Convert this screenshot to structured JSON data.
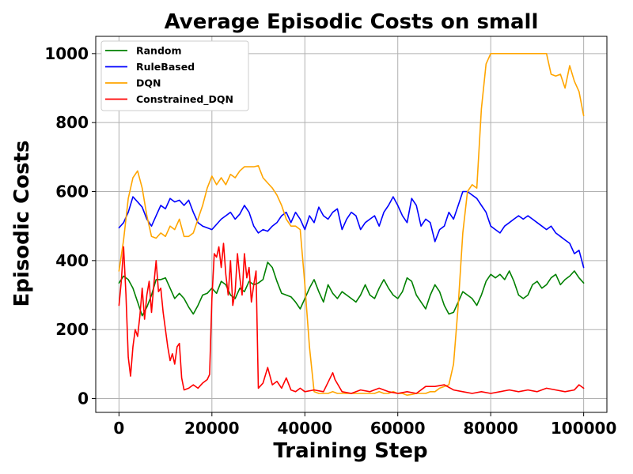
{
  "chart_data": {
    "type": "line",
    "title": "Average Episodic Costs on small",
    "xlabel": "Training Step",
    "ylabel": "Episodic Costs",
    "xlim": [
      -5000,
      105000
    ],
    "ylim": [
      -40,
      1050
    ],
    "xticks": [
      0,
      20000,
      40000,
      60000,
      80000,
      100000
    ],
    "xtick_labels": [
      "0",
      "20000",
      "40000",
      "60000",
      "80000",
      "100000"
    ],
    "yticks": [
      0,
      200,
      400,
      600,
      800,
      1000
    ],
    "ytick_labels": [
      "0",
      "200",
      "400",
      "600",
      "800",
      "1000"
    ],
    "grid": true,
    "legend_position": "upper-left",
    "series": [
      {
        "name": "Random",
        "color": "#008000",
        "x": [
          0,
          1000,
          2000,
          3000,
          4000,
          5000,
          6000,
          7000,
          8000,
          9000,
          10000,
          11000,
          12000,
          13000,
          14000,
          15000,
          16000,
          17000,
          18000,
          19000,
          20000,
          21000,
          22000,
          23000,
          24000,
          25000,
          26000,
          27000,
          28000,
          29000,
          30000,
          31000,
          32000,
          33000,
          34000,
          35000,
          36000,
          37000,
          38000,
          39000,
          40000,
          41000,
          42000,
          43000,
          44000,
          45000,
          46000,
          47000,
          48000,
          49000,
          50000,
          51000,
          52000,
          53000,
          54000,
          55000,
          56000,
          57000,
          58000,
          59000,
          60000,
          61000,
          62000,
          63000,
          64000,
          65000,
          66000,
          67000,
          68000,
          69000,
          70000,
          71000,
          72000,
          73000,
          74000,
          75000,
          76000,
          77000,
          78000,
          79000,
          80000,
          81000,
          82000,
          83000,
          84000,
          85000,
          86000,
          87000,
          88000,
          89000,
          90000,
          91000,
          92000,
          93000,
          94000,
          95000,
          96000,
          97000,
          98000,
          99000,
          100000
        ],
        "y": [
          335,
          355,
          345,
          320,
          280,
          240,
          265,
          300,
          345,
          345,
          350,
          320,
          290,
          305,
          290,
          265,
          245,
          270,
          300,
          305,
          320,
          305,
          340,
          330,
          300,
          290,
          320,
          310,
          340,
          330,
          335,
          345,
          395,
          380,
          340,
          305,
          300,
          295,
          280,
          260,
          290,
          320,
          345,
          310,
          280,
          330,
          305,
          290,
          310,
          300,
          290,
          280,
          300,
          330,
          300,
          290,
          320,
          345,
          320,
          300,
          290,
          310,
          350,
          340,
          300,
          280,
          260,
          300,
          330,
          310,
          270,
          245,
          250,
          280,
          310,
          300,
          290,
          270,
          300,
          340,
          360,
          350,
          360,
          345,
          370,
          340,
          300,
          290,
          300,
          330,
          340,
          320,
          330,
          350,
          360,
          330,
          345,
          355,
          370,
          350,
          335
        ]
      },
      {
        "name": "RuleBased",
        "color": "#0000ff",
        "x": [
          0,
          1000,
          2000,
          3000,
          4000,
          5000,
          6000,
          7000,
          8000,
          9000,
          10000,
          11000,
          12000,
          13000,
          14000,
          15000,
          16000,
          17000,
          18000,
          19000,
          20000,
          21000,
          22000,
          23000,
          24000,
          25000,
          26000,
          27000,
          28000,
          29000,
          30000,
          31000,
          32000,
          33000,
          34000,
          35000,
          36000,
          37000,
          38000,
          39000,
          40000,
          41000,
          42000,
          43000,
          44000,
          45000,
          46000,
          47000,
          48000,
          49000,
          50000,
          51000,
          52000,
          53000,
          54000,
          55000,
          56000,
          57000,
          58000,
          59000,
          60000,
          61000,
          62000,
          63000,
          64000,
          65000,
          66000,
          67000,
          68000,
          69000,
          70000,
          71000,
          72000,
          73000,
          74000,
          75000,
          76000,
          77000,
          78000,
          79000,
          80000,
          81000,
          82000,
          83000,
          84000,
          85000,
          86000,
          87000,
          88000,
          89000,
          90000,
          91000,
          92000,
          93000,
          94000,
          95000,
          96000,
          97000,
          98000,
          99000,
          100000
        ],
        "y": [
          495,
          510,
          540,
          585,
          570,
          555,
          520,
          500,
          530,
          560,
          550,
          580,
          570,
          575,
          560,
          575,
          540,
          510,
          500,
          495,
          490,
          505,
          520,
          530,
          540,
          520,
          535,
          560,
          540,
          500,
          480,
          490,
          485,
          500,
          510,
          530,
          540,
          510,
          540,
          520,
          490,
          530,
          510,
          555,
          530,
          520,
          540,
          550,
          490,
          520,
          540,
          530,
          490,
          510,
          520,
          530,
          500,
          540,
          560,
          585,
          560,
          530,
          510,
          580,
          560,
          500,
          520,
          510,
          455,
          490,
          500,
          540,
          520,
          560,
          600,
          600,
          590,
          580,
          560,
          540,
          500,
          490,
          480,
          500,
          510,
          520,
          530,
          520,
          530,
          520,
          510,
          500,
          490,
          500,
          480,
          470,
          460,
          450,
          420,
          430,
          380
        ]
      },
      {
        "name": "DQN",
        "color": "#ffa500",
        "x": [
          0,
          1000,
          2000,
          3000,
          4000,
          5000,
          6000,
          7000,
          8000,
          9000,
          10000,
          11000,
          12000,
          13000,
          14000,
          15000,
          16000,
          17000,
          18000,
          19000,
          20000,
          21000,
          22000,
          23000,
          24000,
          25000,
          26000,
          27000,
          28000,
          29000,
          30000,
          31000,
          32000,
          33000,
          34000,
          35000,
          36000,
          37000,
          38000,
          39000,
          40000,
          41000,
          42000,
          43000,
          44000,
          45000,
          46000,
          47000,
          48000,
          49000,
          50000,
          51000,
          52000,
          53000,
          54000,
          55000,
          56000,
          57000,
          58000,
          59000,
          60000,
          61000,
          62000,
          63000,
          64000,
          65000,
          66000,
          67000,
          68000,
          69000,
          70000,
          71000,
          72000,
          73000,
          74000,
          75000,
          76000,
          77000,
          78000,
          79000,
          80000,
          81000,
          82000,
          83000,
          84000,
          85000,
          86000,
          87000,
          88000,
          89000,
          90000,
          91000,
          92000,
          93000,
          94000,
          95000,
          96000,
          97000,
          98000,
          99000,
          100000
        ],
        "y": [
          370,
          460,
          580,
          640,
          660,
          610,
          530,
          470,
          465,
          480,
          470,
          500,
          490,
          520,
          470,
          470,
          480,
          520,
          560,
          610,
          645,
          620,
          640,
          620,
          650,
          640,
          660,
          672,
          672,
          672,
          675,
          640,
          625,
          610,
          590,
          560,
          520,
          500,
          500,
          490,
          330,
          150,
          20,
          15,
          15,
          15,
          20,
          15,
          15,
          15,
          15,
          15,
          15,
          15,
          15,
          15,
          20,
          15,
          15,
          20,
          15,
          15,
          10,
          12,
          15,
          15,
          15,
          20,
          20,
          30,
          35,
          40,
          100,
          270,
          480,
          600,
          620,
          610,
          840,
          970,
          1000,
          1000,
          1000,
          1000,
          1000,
          1000,
          1000,
          1000,
          1000,
          1000,
          1000,
          1000,
          1000,
          940,
          935,
          940,
          900,
          965,
          920,
          890,
          820
        ]
      },
      {
        "name": "Constrained_DQN",
        "color": "#ff0000",
        "x": [
          0,
          500,
          1000,
          1500,
          2000,
          2500,
          3000,
          3500,
          4000,
          4500,
          5000,
          5500,
          6000,
          6500,
          7000,
          7500,
          8000,
          8500,
          9000,
          9500,
          10000,
          10500,
          11000,
          11500,
          12000,
          12500,
          13000,
          13500,
          14000,
          15000,
          16000,
          17000,
          18000,
          19000,
          19500,
          20000,
          20500,
          21000,
          21500,
          22000,
          22500,
          23000,
          23500,
          24000,
          24500,
          25000,
          25500,
          26000,
          26500,
          27000,
          27500,
          28000,
          28500,
          29000,
          29500,
          30000,
          31000,
          32000,
          33000,
          34000,
          35000,
          36000,
          37000,
          38000,
          39000,
          40000,
          42000,
          44000,
          46000,
          46500,
          48000,
          50000,
          52000,
          54000,
          56000,
          58000,
          60000,
          62000,
          64000,
          66000,
          68000,
          70000,
          72000,
          74000,
          76000,
          78000,
          80000,
          82000,
          84000,
          86000,
          88000,
          90000,
          92000,
          94000,
          96000,
          98000,
          99000,
          100000
        ],
        "y": [
          270,
          340,
          440,
          300,
          120,
          65,
          150,
          200,
          180,
          240,
          320,
          230,
          300,
          340,
          250,
          330,
          400,
          310,
          320,
          250,
          200,
          150,
          110,
          130,
          100,
          150,
          160,
          60,
          25,
          30,
          40,
          30,
          45,
          55,
          70,
          290,
          420,
          410,
          440,
          380,
          450,
          360,
          300,
          400,
          270,
          310,
          420,
          350,
          300,
          420,
          350,
          380,
          280,
          330,
          370,
          30,
          45,
          90,
          40,
          50,
          30,
          60,
          25,
          20,
          30,
          20,
          25,
          20,
          75,
          55,
          20,
          15,
          25,
          20,
          30,
          20,
          15,
          20,
          15,
          35,
          35,
          40,
          25,
          20,
          15,
          20,
          15,
          20,
          25,
          20,
          25,
          20,
          30,
          25,
          20,
          25,
          40,
          30
        ]
      }
    ]
  }
}
